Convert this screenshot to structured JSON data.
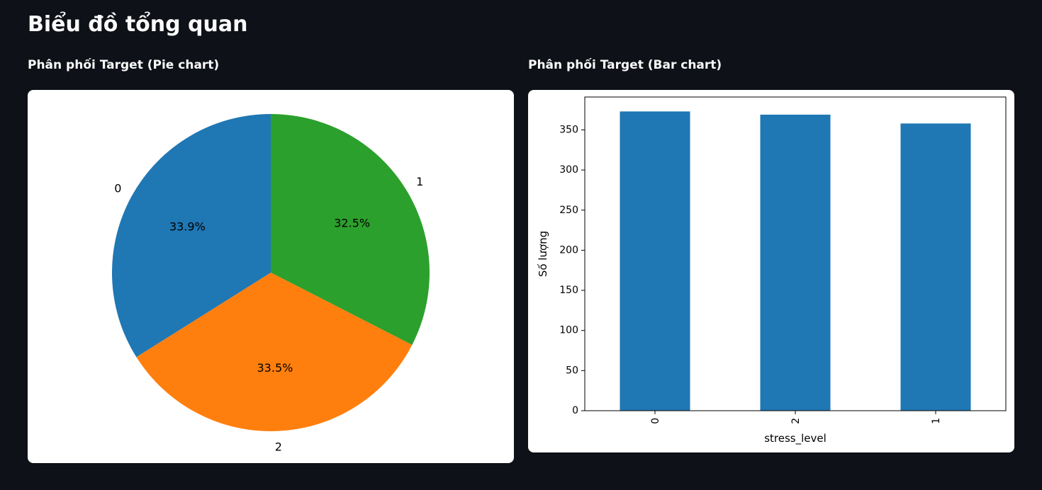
{
  "page": {
    "title": "Biểu đồ tổng quan"
  },
  "pie_section": {
    "title": "Phân phối Target (Pie chart)"
  },
  "bar_section": {
    "title": "Phân phối Target (Bar chart)"
  },
  "chart_data": [
    {
      "type": "pie",
      "title": "",
      "start_angle_deg": 90,
      "direction": "clockwise",
      "slices": [
        {
          "label": "1",
          "value": 32.5,
          "display": "32.5%",
          "color": "#2ca02c"
        },
        {
          "label": "2",
          "value": 33.5,
          "display": "33.5%",
          "color": "#ff7f0e"
        },
        {
          "label": "0",
          "value": 33.9,
          "display": "33.9%",
          "color": "#1f77b4"
        }
      ]
    },
    {
      "type": "bar",
      "title": "",
      "categories": [
        "0",
        "2",
        "1"
      ],
      "values": [
        373,
        369,
        358
      ],
      "bar_color": "#1f77b4",
      "xlabel": "stress_level",
      "ylabel": "Số lượng",
      "ylim": [
        0,
        391
      ],
      "yticks": [
        0,
        50,
        100,
        150,
        200,
        250,
        300,
        350
      ],
      "xtick_rotation": 90,
      "grid": false,
      "legend": "none"
    }
  ]
}
